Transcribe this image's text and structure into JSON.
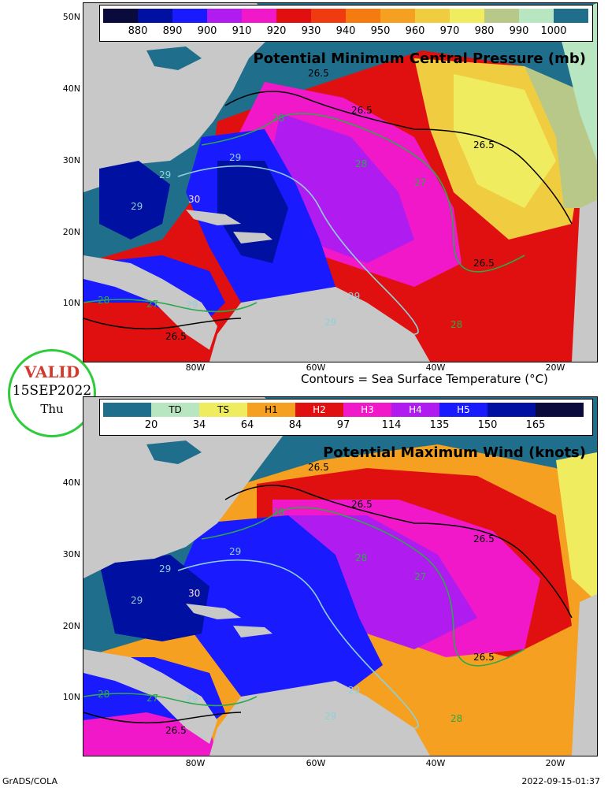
{
  "top_panel": {
    "title": "Potential Minimum Central Pressure (mb)",
    "legend": {
      "colors": [
        "#0a0a3c",
        "#0010a0",
        "#1a1aff",
        "#b01cf0",
        "#f018c8",
        "#e01010",
        "#f03a10",
        "#f57a10",
        "#f5a020",
        "#f0cc40",
        "#f0ec60",
        "#b8c888",
        "#b8e6c0",
        "#1f6e8c"
      ],
      "labels": [
        "880",
        "890",
        "900",
        "910",
        "920",
        "930",
        "940",
        "950",
        "960",
        "970",
        "980",
        "990",
        "1000"
      ]
    }
  },
  "bottom_panel": {
    "title": "Potential Maximum Wind (knots)",
    "legend": {
      "colors": [
        "#1f6e8c",
        "#b8e6c0",
        "#f0ec60",
        "#f5a020",
        "#e01010",
        "#f018c8",
        "#b01cf0",
        "#1a1aff",
        "#0010a0",
        "#0a0a3c"
      ],
      "categories": [
        "",
        "TD",
        "TS",
        "H1",
        "H2",
        "H3",
        "H4",
        "H5",
        "",
        ""
      ],
      "labels": [
        "20",
        "34",
        "64",
        "84",
        "97",
        "114",
        "135",
        "150",
        "165"
      ]
    }
  },
  "axes": {
    "lat_labels": [
      "50N",
      "40N",
      "30N",
      "20N",
      "10N"
    ],
    "lon_labels": [
      "80W",
      "60W",
      "40W",
      "20W"
    ]
  },
  "contour_labels": [
    "26.5",
    "27",
    "28",
    "29",
    "30"
  ],
  "contour_caption": "Contours = Sea Surface Temperature (°C)",
  "valid": {
    "word": "VALID",
    "date": "15SEP2022",
    "day": "Thu"
  },
  "footer": {
    "left": "GrADS/COLA",
    "right": "2022-09-15-01:37"
  }
}
